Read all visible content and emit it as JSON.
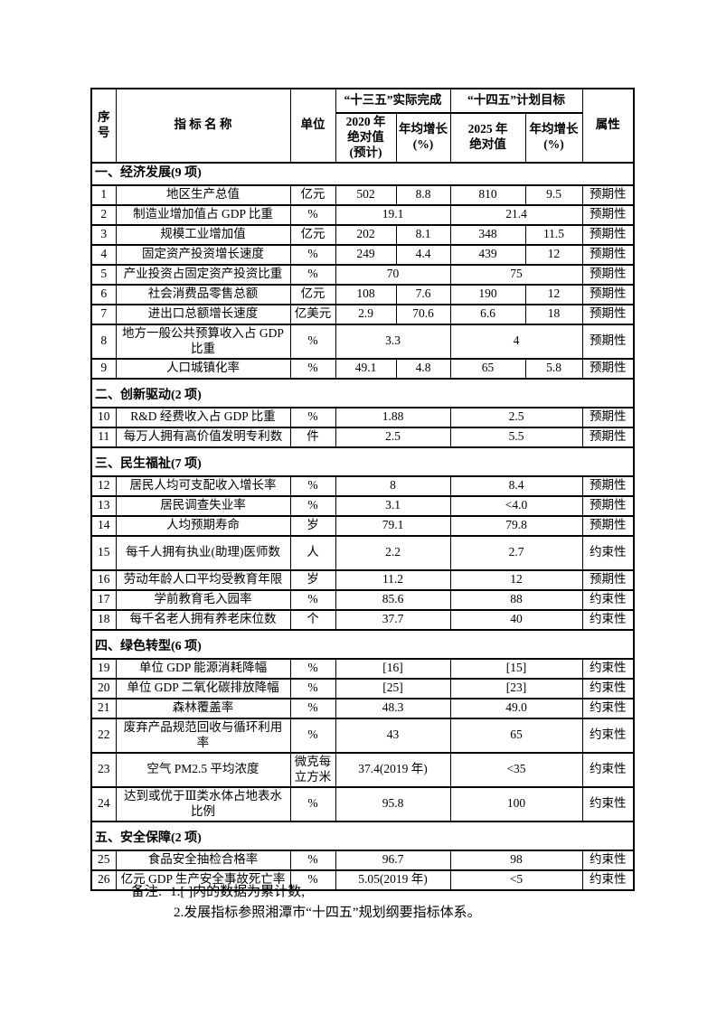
{
  "colors": {
    "background": "#ffffff",
    "text": "#000000",
    "border": "#000000"
  },
  "table": {
    "header": {
      "col_no": "序号",
      "col_name": "指 标 名 称",
      "col_unit": "单位",
      "group_13th": "“十三五”实际完成",
      "group_14th": "“十四五”计划目标",
      "sub_2020": [
        "2020 年",
        "绝对值",
        "(预计)"
      ],
      "sub_growth_13th": [
        "年均增长",
        "(%)"
      ],
      "sub_2025": [
        "2025 年",
        "绝对值"
      ],
      "sub_growth_14th": [
        "年均增长",
        "(%)"
      ],
      "col_attr": "属性"
    },
    "sections": [
      {
        "title": "一、经济发展(9 项)",
        "rows": [
          {
            "no": "1",
            "name": "地区生产总值",
            "unit": "亿元",
            "merged": false,
            "v2020": "502",
            "g13": "8.8",
            "v2025": "810",
            "g14": "9.5",
            "attr": "预期性"
          },
          {
            "no": "2",
            "name": "制造业增加值占 GDP 比重",
            "unit": "%",
            "merged": true,
            "v13": "19.1",
            "v14": "21.4",
            "attr": "预期性"
          },
          {
            "no": "3",
            "name": "规模工业增加值",
            "unit": "亿元",
            "merged": false,
            "v2020": "202",
            "g13": "8.1",
            "v2025": "348",
            "g14": "11.5",
            "attr": "预期性"
          },
          {
            "no": "4",
            "name": "固定资产投资增长速度",
            "unit": "%",
            "merged": false,
            "v2020": "249",
            "g13": "4.4",
            "v2025": "439",
            "g14": "12",
            "attr": "预期性"
          },
          {
            "no": "5",
            "name": "产业投资占固定资产投资比重",
            "unit": "%",
            "merged": true,
            "v13": "70",
            "v14": "75",
            "attr": "预期性"
          },
          {
            "no": "6",
            "name": "社会消费品零售总额",
            "unit": "亿元",
            "merged": false,
            "v2020": "108",
            "g13": "7.6",
            "v2025": "190",
            "g14": "12",
            "attr": "预期性"
          },
          {
            "no": "7",
            "name": "进出口总额增长速度",
            "unit": "亿美元",
            "merged": false,
            "v2020": "2.9",
            "g13": "70.6",
            "v2025": "6.6",
            "g14": "18",
            "attr": "预期性"
          },
          {
            "no": "8",
            "name": "地方一般公共预算收入占 GDP 比重",
            "unit": "%",
            "merged": true,
            "tall": true,
            "v13": "3.3",
            "v14": "4",
            "attr": "预期性"
          },
          {
            "no": "9",
            "name": "人口城镇化率",
            "unit": "%",
            "merged": false,
            "v2020": "49.1",
            "g13": "4.8",
            "v2025": "65",
            "g14": "5.8",
            "attr": "预期性"
          }
        ]
      },
      {
        "title": "二、创新驱动(2 项)",
        "rows": [
          {
            "no": "10",
            "name": "R&D 经费收入占 GDP 比重",
            "unit": "%",
            "merged": true,
            "v13": "1.88",
            "v14": "2.5",
            "attr": "预期性"
          },
          {
            "no": "11",
            "name": "每万人拥有高价值发明专利数",
            "unit": "件",
            "merged": true,
            "v13": "2.5",
            "v14": "5.5",
            "attr": "预期性"
          }
        ]
      },
      {
        "title": "三、民生福祉(7 项)",
        "rows": [
          {
            "no": "12",
            "name": "居民人均可支配收入增长率",
            "unit": "%",
            "merged": true,
            "v13": "8",
            "v14": "8.4",
            "attr": "预期性"
          },
          {
            "no": "13",
            "name": "居民调查失业率",
            "unit": "%",
            "merged": true,
            "v13": "3.1",
            "v14": "<4.0",
            "attr": "预期性"
          },
          {
            "no": "14",
            "name": "人均预期寿命",
            "unit": "岁",
            "merged": true,
            "v13": "79.1",
            "v14": "79.8",
            "attr": "预期性"
          },
          {
            "no": "15",
            "name": "每千人拥有执业(助理)医师数",
            "unit": "人",
            "merged": true,
            "tall": true,
            "v13": "2.2",
            "v14": "2.7",
            "attr": "约束性"
          },
          {
            "no": "16",
            "name": "劳动年龄人口平均受教育年限",
            "unit": "岁",
            "merged": true,
            "v13": "11.2",
            "v14": "12",
            "attr": "预期性"
          },
          {
            "no": "17",
            "name": "学前教育毛入园率",
            "unit": "%",
            "merged": true,
            "v13": "85.6",
            "v14": "88",
            "attr": "约束性"
          },
          {
            "no": "18",
            "name": "每千名老人拥有养老床位数",
            "unit": "个",
            "merged": true,
            "v13": "37.7",
            "v14": "40",
            "attr": "约束性"
          }
        ]
      },
      {
        "title": "四、绿色转型(6 项)",
        "rows": [
          {
            "no": "19",
            "name": "单位 GDP 能源消耗降幅",
            "unit": "%",
            "merged": true,
            "v13": "[16]",
            "v14": "[15]",
            "attr": "约束性"
          },
          {
            "no": "20",
            "name": "单位 GDP 二氧化碳排放降幅",
            "unit": "%",
            "merged": true,
            "v13": "[25]",
            "v14": "[23]",
            "attr": "约束性"
          },
          {
            "no": "21",
            "name": "森林覆盖率",
            "unit": "%",
            "merged": true,
            "v13": "48.3",
            "v14": "49.0",
            "attr": "约束性"
          },
          {
            "no": "22",
            "name": "废弃产品规范回收与循环利用率",
            "unit": "%",
            "merged": true,
            "tall": true,
            "v13": "43",
            "v14": "65",
            "attr": "约束性"
          },
          {
            "no": "23",
            "name": "空气 PM2.5 平均浓度",
            "unit": "微克每立方米",
            "merged": true,
            "tall": true,
            "v13": "37.4(2019 年)",
            "v14": "<35",
            "attr": "约束性"
          },
          {
            "no": "24",
            "name": "达到或优于Ⅲ类水体占地表水比例",
            "unit": "%",
            "merged": true,
            "tall": true,
            "v13": "95.8",
            "v14": "100",
            "attr": "约束性"
          }
        ]
      },
      {
        "title": "五、安全保障(2 项)",
        "rows": [
          {
            "no": "25",
            "name": "食品安全抽检合格率",
            "unit": "%",
            "merged": true,
            "v13": "96.7",
            "v14": "98",
            "attr": "约束性"
          },
          {
            "no": "26",
            "name": "亿元 GDP 生产安全事故死亡率",
            "unit": "%",
            "merged": true,
            "v13": "5.05(2019 年)",
            "v14": "<5",
            "attr": "约束性"
          }
        ]
      }
    ]
  },
  "notes": {
    "label": "备注:",
    "line1": "1.[ ]内的数据为累计数;",
    "line2": "2.发展指标参照湘潭市“十四五”规划纲要指标体系。"
  }
}
